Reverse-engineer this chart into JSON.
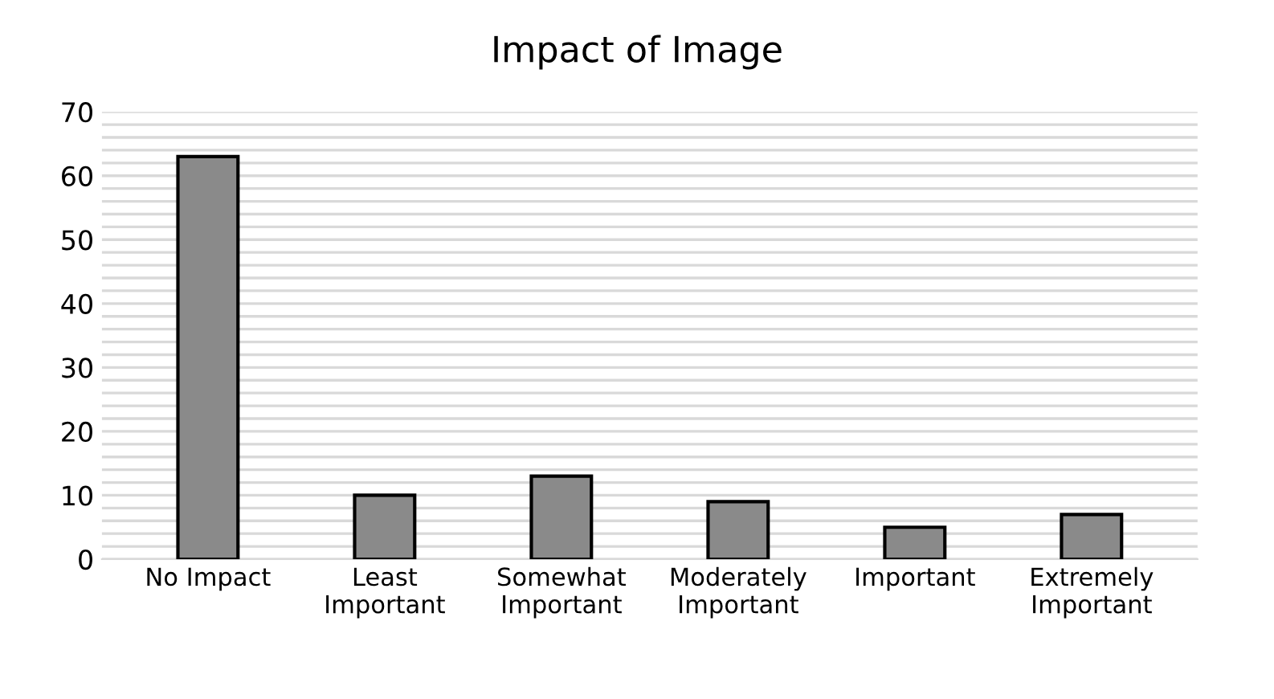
{
  "chart_data": {
    "type": "bar",
    "title": "Impact of Image",
    "categories": [
      "No Impact",
      "Least\nImportant",
      "Somewhat\nImportant",
      "Moderately\nImportant",
      "Important",
      "Extremely\nImportant"
    ],
    "values": [
      63,
      10,
      13,
      9,
      5,
      7
    ],
    "color": "#8a8a8a",
    "ylim": [
      0,
      70
    ],
    "yticks": [
      0,
      {
        "value": 2,
        "label": null
      },
      {
        "value": 4,
        "label": null
      },
      {
        "value": 6,
        "label": null
      },
      {
        "value": 8,
        "label": null
      },
      10,
      {
        "value": 12,
        "label": null
      },
      {
        "value": 14,
        "label": null
      },
      {
        "value": 16,
        "label": null
      },
      {
        "value": 18,
        "label": null
      },
      20,
      {
        "value": 22,
        "label": null
      },
      {
        "value": 24,
        "label": null
      },
      {
        "value": 26,
        "label": null
      },
      {
        "value": 28,
        "label": null
      },
      30,
      {
        "value": 32,
        "label": null
      },
      {
        "value": 34,
        "label": null
      },
      {
        "value": 36,
        "label": null
      },
      {
        "value": 38,
        "label": null
      },
      40,
      {
        "value": 42,
        "label": null
      },
      {
        "value": 44,
        "label": null
      },
      {
        "value": 46,
        "label": null
      },
      {
        "value": 48,
        "label": null
      },
      50,
      {
        "value": 52,
        "label": null
      },
      {
        "value": 54,
        "label": null
      },
      {
        "value": 56,
        "label": null
      },
      {
        "value": 58,
        "label": null
      },
      60,
      {
        "value": 62,
        "label": null
      },
      {
        "value": 64,
        "label": null
      },
      {
        "value": 66,
        "label": null
      },
      {
        "value": 68,
        "label": null
      },
      70
    ],
    "grid": "y"
  }
}
